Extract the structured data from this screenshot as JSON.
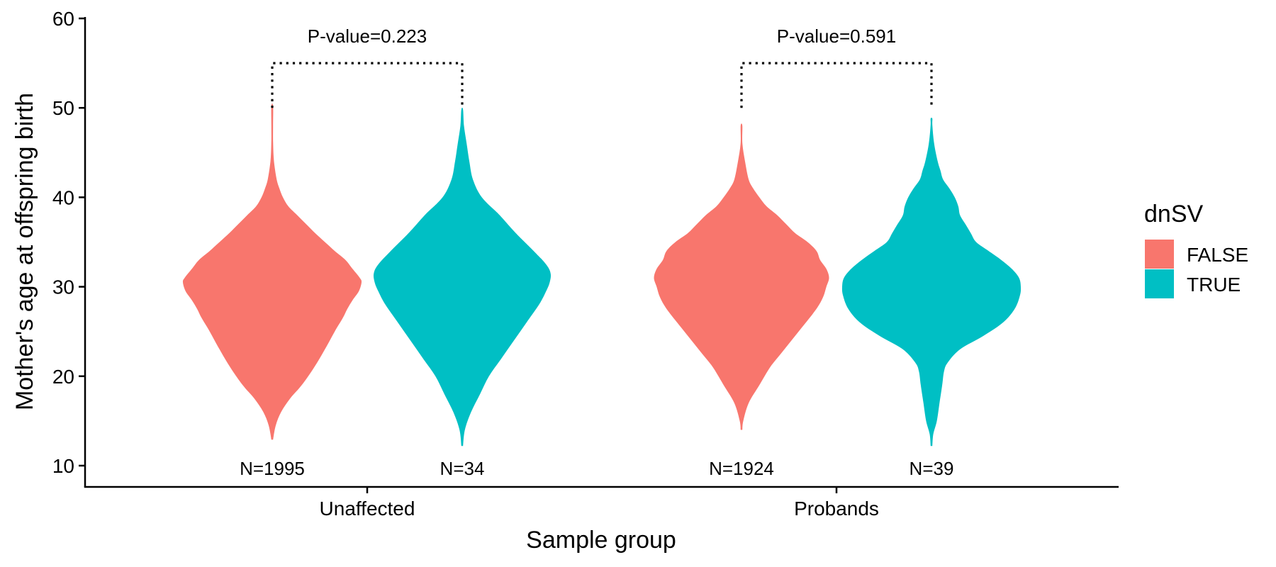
{
  "chart_data": {
    "type": "violin",
    "xlabel": "Sample group",
    "ylabel": "Mother's age at offspring birth",
    "ylim": [
      10,
      60
    ],
    "yticks": [
      10,
      20,
      30,
      40,
      50,
      60
    ],
    "groups": [
      "Unaffected",
      "Probands"
    ],
    "legend": {
      "title": "dnSV",
      "position": "right",
      "entries": [
        {
          "label": "FALSE",
          "color": "#F8766D"
        },
        {
          "label": "TRUE",
          "color": "#00BFC4"
        }
      ]
    },
    "grid": false,
    "violins": [
      {
        "group": "Unaffected",
        "dnSV": "FALSE",
        "count_label": "N=1995",
        "profile": [
          [
            12.9,
            0.0
          ],
          [
            14.5,
            0.04
          ],
          [
            16,
            0.1
          ],
          [
            17.5,
            0.2
          ],
          [
            19,
            0.33
          ],
          [
            21,
            0.47
          ],
          [
            23,
            0.59
          ],
          [
            25,
            0.7
          ],
          [
            26.5,
            0.79
          ],
          [
            27.5,
            0.84
          ],
          [
            28.5,
            0.9
          ],
          [
            29.5,
            0.97
          ],
          [
            30.5,
            1.0
          ],
          [
            31,
            0.98
          ],
          [
            32,
            0.9
          ],
          [
            33,
            0.82
          ],
          [
            34,
            0.7
          ],
          [
            35,
            0.59
          ],
          [
            36,
            0.48
          ],
          [
            37,
            0.38
          ],
          [
            38,
            0.28
          ],
          [
            39,
            0.18
          ],
          [
            40,
            0.12
          ],
          [
            41,
            0.08
          ],
          [
            42,
            0.05
          ],
          [
            44,
            0.02
          ],
          [
            46,
            0.01
          ],
          [
            48,
            0.005
          ],
          [
            50.2,
            0.0
          ]
        ]
      },
      {
        "group": "Unaffected",
        "dnSV": "TRUE",
        "count_label": "N=34",
        "profile": [
          [
            12.2,
            0.0
          ],
          [
            14,
            0.03
          ],
          [
            16,
            0.1
          ],
          [
            18,
            0.2
          ],
          [
            20,
            0.3
          ],
          [
            22,
            0.44
          ],
          [
            24,
            0.58
          ],
          [
            26,
            0.72
          ],
          [
            28,
            0.86
          ],
          [
            29.5,
            0.94
          ],
          [
            30.5,
            0.98
          ],
          [
            31.5,
            0.99
          ],
          [
            32.5,
            0.94
          ],
          [
            34,
            0.8
          ],
          [
            36,
            0.6
          ],
          [
            38,
            0.42
          ],
          [
            40,
            0.22
          ],
          [
            42,
            0.12
          ],
          [
            44,
            0.08
          ],
          [
            46,
            0.05
          ],
          [
            48,
            0.02
          ],
          [
            49.8,
            0.0
          ]
        ]
      },
      {
        "group": "Probands",
        "dnSV": "FALSE",
        "count_label": "N=1924",
        "profile": [
          [
            14,
            0.0
          ],
          [
            15,
            0.02
          ],
          [
            17,
            0.08
          ],
          [
            19,
            0.2
          ],
          [
            21,
            0.32
          ],
          [
            22.5,
            0.44
          ],
          [
            24,
            0.56
          ],
          [
            25.5,
            0.68
          ],
          [
            27,
            0.8
          ],
          [
            28,
            0.87
          ],
          [
            29,
            0.92
          ],
          [
            30,
            0.95
          ],
          [
            31,
            0.98
          ],
          [
            32,
            0.95
          ],
          [
            33,
            0.88
          ],
          [
            34,
            0.84
          ],
          [
            35,
            0.74
          ],
          [
            36,
            0.6
          ],
          [
            37,
            0.5
          ],
          [
            38,
            0.4
          ],
          [
            39,
            0.28
          ],
          [
            40,
            0.2
          ],
          [
            41,
            0.13
          ],
          [
            42,
            0.08
          ],
          [
            44,
            0.04
          ],
          [
            46,
            0.01
          ],
          [
            48,
            0.0
          ]
        ]
      },
      {
        "group": "Probands",
        "dnSV": "TRUE",
        "count_label": "N=39",
        "profile": [
          [
            12.2,
            0.0
          ],
          [
            13.5,
            0.02
          ],
          [
            15,
            0.06
          ],
          [
            17,
            0.09
          ],
          [
            19,
            0.12
          ],
          [
            20.5,
            0.14
          ],
          [
            21.5,
            0.18
          ],
          [
            23,
            0.32
          ],
          [
            24.5,
            0.58
          ],
          [
            26,
            0.8
          ],
          [
            27.5,
            0.93
          ],
          [
            29,
            0.99
          ],
          [
            30,
            1.0
          ],
          [
            31,
            0.98
          ],
          [
            32,
            0.9
          ],
          [
            33,
            0.78
          ],
          [
            34,
            0.64
          ],
          [
            35,
            0.5
          ],
          [
            36,
            0.44
          ],
          [
            37,
            0.38
          ],
          [
            38,
            0.32
          ],
          [
            39,
            0.3
          ],
          [
            40,
            0.26
          ],
          [
            41,
            0.2
          ],
          [
            42,
            0.13
          ],
          [
            43,
            0.1
          ],
          [
            44,
            0.07
          ],
          [
            46,
            0.03
          ],
          [
            48,
            0.01
          ],
          [
            48.8,
            0.0
          ]
        ]
      }
    ],
    "comparisons": [
      {
        "group": "Unaffected",
        "label": "P-value=0.223"
      },
      {
        "group": "Probands",
        "label": "P-value=0.591"
      }
    ]
  }
}
